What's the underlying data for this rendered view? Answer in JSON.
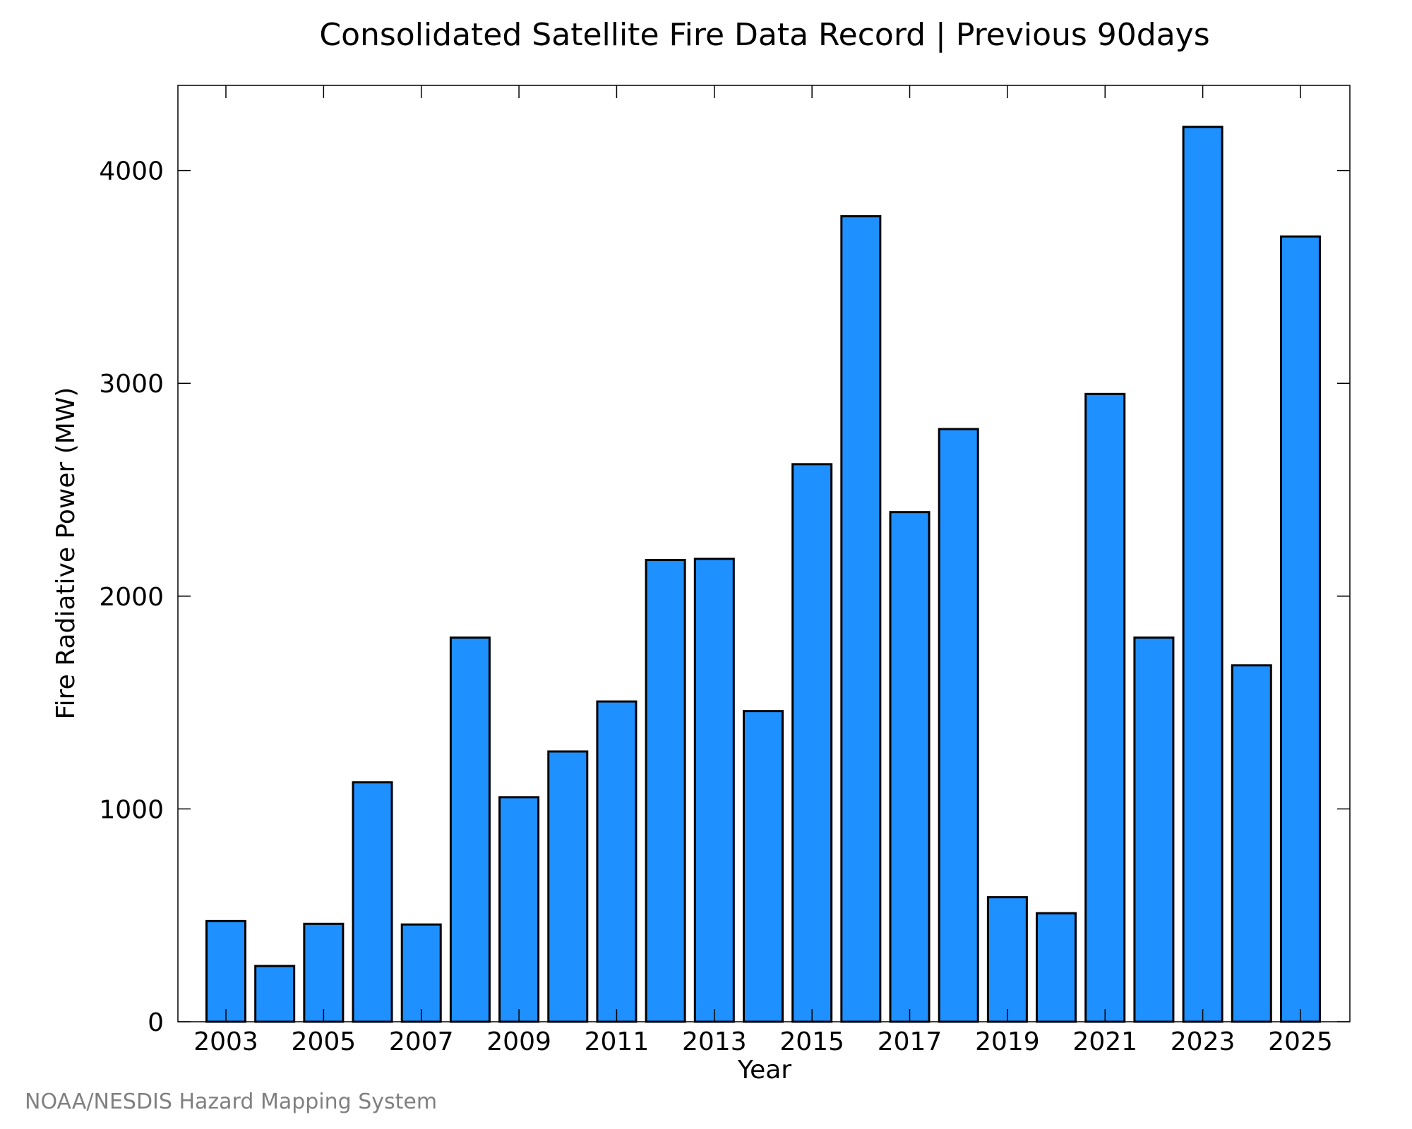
{
  "chart_data": {
    "type": "bar",
    "title": "Consolidated Satellite Fire Data Record | Previous 90days",
    "xlabel": "Year",
    "ylabel": "Fire Radiative Power (MW)",
    "ylim": [
      0,
      4400
    ],
    "yticks": [
      0,
      1000,
      2000,
      3000,
      4000
    ],
    "xticks": [
      "2003",
      "2005",
      "2007",
      "2009",
      "2011",
      "2013",
      "2015",
      "2017",
      "2019",
      "2021",
      "2023",
      "2025"
    ],
    "categories": [
      "2003",
      "2004",
      "2005",
      "2006",
      "2007",
      "2008",
      "2009",
      "2010",
      "2011",
      "2012",
      "2013",
      "2014",
      "2015",
      "2016",
      "2017",
      "2018",
      "2019",
      "2020",
      "2021",
      "2022",
      "2023",
      "2024",
      "2025"
    ],
    "values": [
      473,
      262,
      460,
      1125,
      457,
      1805,
      1055,
      1270,
      1505,
      2170,
      2175,
      1460,
      2620,
      3785,
      2395,
      2785,
      585,
      510,
      2950,
      1805,
      4205,
      1675,
      3690
    ],
    "grid": false,
    "bar_color": "#1E90FF",
    "bar_edge_color": "#000000",
    "credit": "NOAA/NESDIS Hazard Mapping System"
  }
}
